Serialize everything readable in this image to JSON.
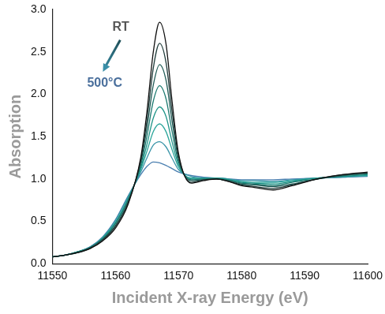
{
  "chart_data": {
    "type": "line",
    "x_label": "Incident X-ray Energy (eV)",
    "y_label": "Absorption",
    "annotations": [
      "RT",
      "500°C"
    ],
    "x": [
      11550,
      11552,
      11554,
      11556,
      11558,
      11560,
      11562,
      11564,
      11565,
      11566,
      11567,
      11568,
      11569,
      11570,
      11572,
      11574,
      11576,
      11578,
      11580,
      11582,
      11585,
      11588,
      11592,
      11596,
      11600
    ],
    "series": [
      {
        "color": "#111111",
        "values": [
          0.08,
          0.1,
          0.13,
          0.18,
          0.27,
          0.42,
          0.7,
          1.25,
          1.8,
          2.5,
          2.85,
          2.6,
          1.9,
          1.3,
          0.95,
          0.98,
          1.0,
          0.97,
          0.92,
          0.9,
          0.87,
          0.92,
          1.0,
          1.05,
          1.08
        ]
      },
      {
        "color": "#1f3b3a",
        "values": [
          0.08,
          0.1,
          0.13,
          0.18,
          0.28,
          0.44,
          0.72,
          1.22,
          1.7,
          2.31,
          2.6,
          2.38,
          1.78,
          1.27,
          0.96,
          0.99,
          1.0,
          0.97,
          0.93,
          0.91,
          0.89,
          0.93,
          1.0,
          1.05,
          1.07
        ]
      },
      {
        "color": "#1f5a55",
        "values": [
          0.08,
          0.1,
          0.13,
          0.19,
          0.29,
          0.45,
          0.73,
          1.19,
          1.61,
          2.11,
          2.35,
          2.17,
          1.67,
          1.23,
          0.98,
          0.99,
          1.0,
          0.98,
          0.94,
          0.93,
          0.91,
          0.94,
          1.0,
          1.04,
          1.07
        ]
      },
      {
        "color": "#1d7a70",
        "values": [
          0.08,
          0.1,
          0.14,
          0.19,
          0.29,
          0.47,
          0.75,
          1.16,
          1.51,
          1.92,
          2.1,
          1.95,
          1.55,
          1.2,
          0.99,
          1.0,
          1.0,
          0.98,
          0.95,
          0.94,
          0.92,
          0.96,
          1.0,
          1.04,
          1.06
        ]
      },
      {
        "color": "#1f9488",
        "values": [
          0.08,
          0.1,
          0.14,
          0.19,
          0.3,
          0.48,
          0.76,
          1.13,
          1.41,
          1.72,
          1.85,
          1.74,
          1.43,
          1.17,
          1.0,
          1.0,
          1.01,
          0.99,
          0.96,
          0.95,
          0.94,
          0.97,
          1.01,
          1.03,
          1.05
        ]
      },
      {
        "color": "#2aa59a",
        "values": [
          0.08,
          0.1,
          0.14,
          0.19,
          0.31,
          0.49,
          0.77,
          1.11,
          1.33,
          1.56,
          1.65,
          1.56,
          1.34,
          1.14,
          1.01,
          1.01,
          1.01,
          0.99,
          0.97,
          0.96,
          0.96,
          0.98,
          1.01,
          1.03,
          1.04
        ]
      },
      {
        "color": "#3a95a8",
        "values": [
          0.08,
          0.1,
          0.14,
          0.2,
          0.31,
          0.51,
          0.79,
          1.08,
          1.25,
          1.4,
          1.44,
          1.38,
          1.24,
          1.11,
          1.03,
          1.01,
          1.01,
          1.0,
          0.98,
          0.98,
          0.97,
          0.99,
          1.01,
          1.02,
          1.04
        ]
      },
      {
        "color": "#4a7fb0",
        "values": [
          0.08,
          0.1,
          0.14,
          0.2,
          0.32,
          0.52,
          0.8,
          1.05,
          1.15,
          1.2,
          1.19,
          1.16,
          1.12,
          1.08,
          1.04,
          1.02,
          1.01,
          1.0,
          0.99,
          0.99,
          0.99,
          1.0,
          1.01,
          1.02,
          1.03
        ]
      }
    ],
    "xlim": [
      11550,
      11600
    ],
    "xticks": [
      11550,
      11560,
      11570,
      11580,
      11590,
      11600
    ],
    "ylim": [
      0,
      3
    ],
    "yticks": [
      {
        "value": 0,
        "label": "0.0"
      },
      {
        "value": 0.5,
        "label": "0.5"
      },
      {
        "value": 1,
        "label": "1.0"
      },
      {
        "value": 1.5,
        "label": "1.5"
      },
      {
        "value": 2,
        "label": "2.0"
      },
      {
        "value": 2.5,
        "label": "2.5"
      },
      {
        "value": 3,
        "label": "3.0"
      }
    ],
    "grid": false
  }
}
